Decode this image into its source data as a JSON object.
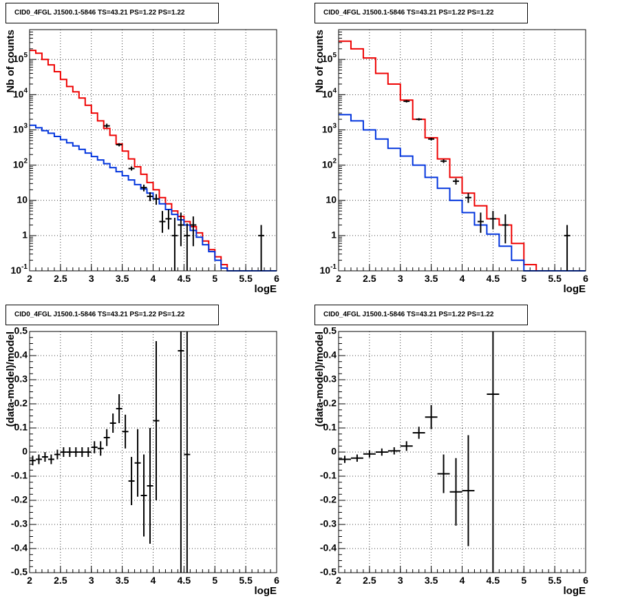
{
  "panels_title": "CID0_4FGL J1500.1-5846 TS=43.21 PS=1.22 PS=1.22",
  "colors": {
    "total_model": "#ee0000",
    "background_model": "#0033dd",
    "data": "#000000",
    "grid": "#000000"
  },
  "chart_data": [
    {
      "id": "counts-left",
      "type": "line",
      "title": "CID0_4FGL J1500.1-5846 TS=43.21 PS=1.22 PS=1.22",
      "xlabel": "logE",
      "ylabel": "Nb of counts",
      "xlim": [
        2,
        6
      ],
      "ylim": [
        0.1,
        700000
      ],
      "log_y": true,
      "grid": true,
      "x_ticks": [
        "2",
        "2.5",
        "3",
        "3.5",
        "4",
        "4.5",
        "5",
        "5.5",
        "6"
      ],
      "y_ticks": [
        "10^{-1}",
        "1",
        "10",
        "10^{2}",
        "10^{3}",
        "10^{4}",
        "10^{5}"
      ],
      "bin_edges": [
        2.0,
        2.1,
        2.2,
        2.3,
        2.4,
        2.5,
        2.6,
        2.7,
        2.8,
        2.9,
        3.0,
        3.1,
        3.2,
        3.3,
        3.4,
        3.5,
        3.6,
        3.7,
        3.8,
        3.9,
        4.0,
        4.1,
        4.2,
        4.3,
        4.4,
        4.5,
        4.6,
        4.7,
        4.8,
        4.9,
        5.0,
        5.1,
        5.2,
        5.3,
        5.4,
        5.5,
        5.6,
        5.7,
        5.8,
        5.9,
        6.0
      ],
      "series": [
        {
          "values": [
            180000,
            150000,
            100000,
            70000,
            45000,
            27000,
            17000,
            12000,
            8000,
            5000,
            3000,
            1800,
            1100,
            700,
            400,
            250,
            150,
            90,
            55,
            32,
            20,
            12,
            8,
            5,
            3.5,
            2.5,
            1.8,
            1.2,
            0.7,
            0.4,
            0.25,
            0.15,
            0.1,
            0.1,
            0.1,
            0.1,
            0.1,
            0.1,
            0.1,
            0.1
          ],
          "color": "#ee0000",
          "kind": "hist"
        },
        {
          "values": [
            1350,
            1150,
            950,
            800,
            650,
            530,
            430,
            350,
            280,
            220,
            175,
            140,
            110,
            85,
            65,
            50,
            38,
            28,
            21,
            16,
            11,
            8,
            5.5,
            4,
            2.8,
            2,
            1.4,
            0.9,
            0.55,
            0.35,
            0.2,
            0.12,
            0.1,
            0.1,
            0.1,
            0.1,
            0.1,
            0.1,
            0.1,
            0.1
          ],
          "color": "#0033dd",
          "kind": "hist"
        },
        {
          "kind": "points",
          "color": "#000000",
          "points": [
            [
              3.25,
              1300,
              1150,
              1500
            ],
            [
              3.45,
              380,
              340,
              420
            ],
            [
              3.65,
              80,
              70,
              92
            ],
            [
              3.85,
              23,
              18,
              28
            ],
            [
              3.95,
              13,
              9.5,
              17
            ],
            [
              4.05,
              11,
              7.5,
              15
            ],
            [
              4.15,
              2.5,
              1.2,
              5
            ],
            [
              4.25,
              3,
              1.5,
              5.5
            ],
            [
              4.35,
              1,
              0.1,
              3.2
            ],
            [
              4.45,
              2,
              0.5,
              4.5
            ],
            [
              4.55,
              1,
              0.1,
              2.2
            ],
            [
              4.65,
              2,
              0.5,
              3.5
            ],
            [
              5.75,
              1,
              0.1,
              2
            ]
          ]
        }
      ]
    },
    {
      "id": "counts-right",
      "type": "line",
      "title": "CID0_4FGL J1500.1-5846 TS=43.21 PS=1.22 PS=1.22",
      "xlabel": "logE",
      "ylabel": "Nb of counts",
      "xlim": [
        2,
        6
      ],
      "ylim": [
        0.1,
        700000
      ],
      "log_y": true,
      "grid": true,
      "x_ticks": [
        "2",
        "2.5",
        "3",
        "3.5",
        "4",
        "4.5",
        "5",
        "5.5",
        "6"
      ],
      "y_ticks": [
        "10^{-1}",
        "1",
        "10",
        "10^{2}",
        "10^{3}",
        "10^{4}",
        "10^{5}"
      ],
      "bin_edges": [
        2.0,
        2.2,
        2.4,
        2.6,
        2.8,
        3.0,
        3.2,
        3.4,
        3.6,
        3.8,
        4.0,
        4.2,
        4.4,
        4.6,
        4.8,
        5.0,
        5.2,
        5.4,
        5.6,
        5.8,
        6.0
      ],
      "series": [
        {
          "values": [
            330000,
            200000,
            110000,
            40000,
            20000,
            7000,
            2000,
            600,
            150,
            45,
            16,
            7,
            3,
            2,
            0.6,
            0.15,
            0.1,
            0.1,
            0.1,
            0.1
          ],
          "color": "#ee0000",
          "kind": "hist"
        },
        {
          "values": [
            2700,
            1800,
            1000,
            550,
            300,
            180,
            100,
            45,
            22,
            10,
            4.5,
            2,
            1.1,
            0.5,
            0.2,
            0.1,
            0.1,
            0.1,
            0.1,
            0.1
          ],
          "color": "#0033dd",
          "kind": "hist"
        },
        {
          "kind": "points",
          "color": "#000000",
          "points": [
            [
              3.1,
              6500,
              6000,
              7000
            ],
            [
              3.3,
              2000,
              1850,
              2150
            ],
            [
              3.5,
              550,
              500,
              600
            ],
            [
              3.7,
              130,
              115,
              145
            ],
            [
              3.9,
              35,
              28,
              42
            ],
            [
              4.1,
              12,
              8.5,
              16
            ],
            [
              4.3,
              2.5,
              1.2,
              4.5
            ],
            [
              4.5,
              3,
              1.5,
              5
            ],
            [
              4.7,
              2,
              0.6,
              4
            ],
            [
              5.7,
              1,
              0.1,
              2
            ]
          ]
        }
      ]
    },
    {
      "id": "residuals-left",
      "type": "scatter",
      "title": "CID0_4FGL J1500.1-5846 TS=43.21 PS=1.22 PS=1.22",
      "xlabel": "logE",
      "ylabel": "(data-model)/model",
      "xlim": [
        2,
        6
      ],
      "ylim": [
        -0.5,
        0.5
      ],
      "grid": true,
      "x_ticks": [
        "2",
        "2.5",
        "3",
        "3.5",
        "4",
        "4.5",
        "5",
        "5.5",
        "6"
      ],
      "y_ticks": [
        "-0.5",
        "-0.4",
        "-0.3",
        "-0.2",
        "-0.1",
        "0",
        "0.1",
        "0.2",
        "0.3",
        "0.4",
        "0.5"
      ],
      "series": [
        {
          "kind": "points",
          "color": "#000000",
          "xerr": 0.05,
          "points": [
            [
              2.05,
              -0.035,
              0.02
            ],
            [
              2.15,
              -0.03,
              0.02
            ],
            [
              2.25,
              -0.02,
              0.02
            ],
            [
              2.35,
              -0.03,
              0.02
            ],
            [
              2.45,
              -0.01,
              0.02
            ],
            [
              2.55,
              0,
              0.02
            ],
            [
              2.65,
              0,
              0.02
            ],
            [
              2.75,
              0,
              0.02
            ],
            [
              2.85,
              0,
              0.02
            ],
            [
              2.95,
              0,
              0.02
            ],
            [
              3.05,
              0.02,
              0.025
            ],
            [
              3.15,
              0.015,
              0.03
            ],
            [
              3.25,
              0.06,
              0.035
            ],
            [
              3.35,
              0.12,
              0.04
            ],
            [
              3.45,
              0.18,
              0.06
            ],
            [
              3.55,
              0.085,
              0.07
            ],
            [
              3.65,
              -0.12,
              0.1
            ],
            [
              3.75,
              -0.045,
              0.14
            ],
            [
              3.85,
              -0.18,
              0.17
            ],
            [
              3.95,
              -0.14,
              0.24
            ],
            [
              4.05,
              0.13,
              0.33
            ],
            [
              4.45,
              0.42,
              1.0
            ],
            [
              4.55,
              -0.01,
              1.0
            ]
          ]
        }
      ]
    },
    {
      "id": "residuals-right",
      "type": "scatter",
      "title": "CID0_4FGL J1500.1-5846 TS=43.21 PS=1.22 PS=1.22",
      "xlabel": "logE",
      "ylabel": "(data-model)/model",
      "xlim": [
        2,
        6
      ],
      "ylim": [
        -0.5,
        0.5
      ],
      "grid": true,
      "x_ticks": [
        "2",
        "2.5",
        "3",
        "3.5",
        "4",
        "4.5",
        "5",
        "5.5",
        "6"
      ],
      "y_ticks": [
        "-0.5",
        "-0.4",
        "-0.3",
        "-0.2",
        "-0.1",
        "0",
        "0.1",
        "0.2",
        "0.3",
        "0.4",
        "0.5"
      ],
      "series": [
        {
          "kind": "points",
          "color": "#000000",
          "xerr": 0.1,
          "points": [
            [
              2.1,
              -0.03,
              0.015
            ],
            [
              2.3,
              -0.025,
              0.015
            ],
            [
              2.5,
              -0.008,
              0.015
            ],
            [
              2.7,
              0,
              0.015
            ],
            [
              2.9,
              0.005,
              0.015
            ],
            [
              3.1,
              0.025,
              0.02
            ],
            [
              3.3,
              0.08,
              0.025
            ],
            [
              3.5,
              0.145,
              0.05
            ],
            [
              3.7,
              -0.09,
              0.08
            ],
            [
              3.9,
              -0.165,
              0.14
            ],
            [
              4.1,
              -0.16,
              0.23
            ],
            [
              4.5,
              0.24,
              1.0
            ]
          ]
        }
      ]
    }
  ]
}
